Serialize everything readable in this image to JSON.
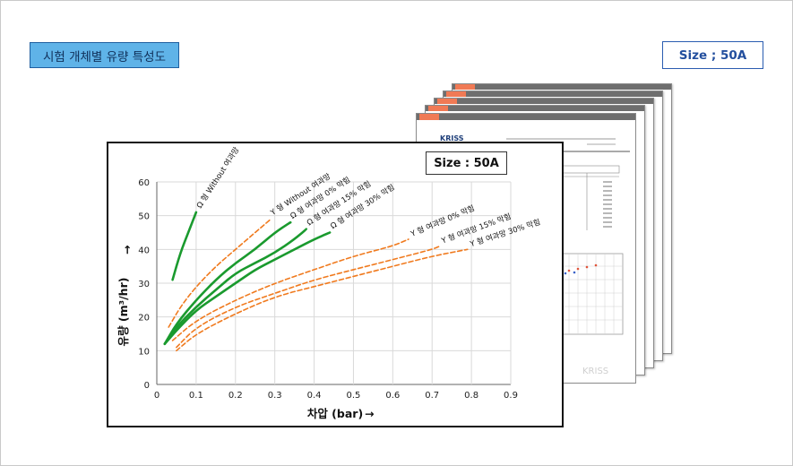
{
  "header": {
    "title": "시험 개체별 유량 특성도",
    "size_label": "Size ; 50A"
  },
  "document_preview": {
    "logo_text": "KRISS",
    "watermark": "KRISS"
  },
  "chart_data": {
    "type": "line",
    "size_label": "Size : 50A",
    "xlabel": "차압 (bar)",
    "ylabel": "유량 (m³/hr)",
    "xlim": [
      0,
      0.9
    ],
    "ylim": [
      0,
      60
    ],
    "xticks": [
      "0",
      "0.1",
      "0.2",
      "0.3",
      "0.4",
      "0.5",
      "0.6",
      "0.7",
      "0.8",
      "0.9"
    ],
    "yticks": [
      "0",
      "10",
      "20",
      "30",
      "40",
      "50",
      "60"
    ],
    "grid": true,
    "colors": {
      "omega": "#1a9a2e",
      "y": "#f07a1e"
    },
    "series": [
      {
        "name": "Ω 형 Without 여과망",
        "style": "solid",
        "color": "#1a9a2e",
        "x": [
          0.04,
          0.06,
          0.08,
          0.1
        ],
        "y": [
          31,
          39,
          45,
          51
        ]
      },
      {
        "name": "Ω 형 여과망 0% 막힘",
        "style": "solid",
        "color": "#1a9a2e",
        "x": [
          0.02,
          0.05,
          0.1,
          0.15,
          0.2,
          0.25,
          0.3,
          0.34
        ],
        "y": [
          12,
          18,
          25,
          31,
          36,
          40,
          45,
          48
        ]
      },
      {
        "name": "Ω 형 여과망 15% 막힘",
        "style": "solid",
        "color": "#1a9a2e",
        "x": [
          0.02,
          0.05,
          0.1,
          0.15,
          0.2,
          0.25,
          0.3,
          0.35,
          0.38
        ],
        "y": [
          12,
          17,
          23,
          28,
          33,
          36,
          39,
          43,
          46
        ]
      },
      {
        "name": "Ω 형 여과망 30% 막힘",
        "style": "solid",
        "color": "#1a9a2e",
        "x": [
          0.02,
          0.05,
          0.1,
          0.15,
          0.2,
          0.25,
          0.3,
          0.35,
          0.4,
          0.44
        ],
        "y": [
          12,
          16,
          22,
          26,
          30,
          34,
          37,
          40,
          43,
          45
        ]
      },
      {
        "name": "Y 형 Without 여과망",
        "style": "dashed",
        "color": "#f07a1e",
        "x": [
          0.03,
          0.06,
          0.1,
          0.15,
          0.2,
          0.25,
          0.29
        ],
        "y": [
          17,
          23,
          29,
          35,
          40,
          45,
          49
        ]
      },
      {
        "name": "Y 형 여과망 0% 막힘",
        "style": "dashed",
        "color": "#f07a1e",
        "x": [
          0.04,
          0.1,
          0.2,
          0.3,
          0.4,
          0.5,
          0.6,
          0.64
        ],
        "y": [
          13,
          19,
          25,
          30,
          34,
          38,
          41,
          43
        ]
      },
      {
        "name": "Y 형 여과망 15% 막힘",
        "style": "dashed",
        "color": "#f07a1e",
        "x": [
          0.05,
          0.1,
          0.2,
          0.3,
          0.4,
          0.5,
          0.6,
          0.7,
          0.72
        ],
        "y": [
          11,
          17,
          23,
          27,
          31,
          34,
          37,
          40,
          41
        ]
      },
      {
        "name": "Y 형 여과망 30% 막힘",
        "style": "dashed",
        "color": "#f07a1e",
        "x": [
          0.05,
          0.1,
          0.2,
          0.3,
          0.4,
          0.5,
          0.6,
          0.7,
          0.79
        ],
        "y": [
          10,
          15,
          21,
          26,
          29,
          32,
          35,
          38,
          40
        ]
      }
    ]
  }
}
